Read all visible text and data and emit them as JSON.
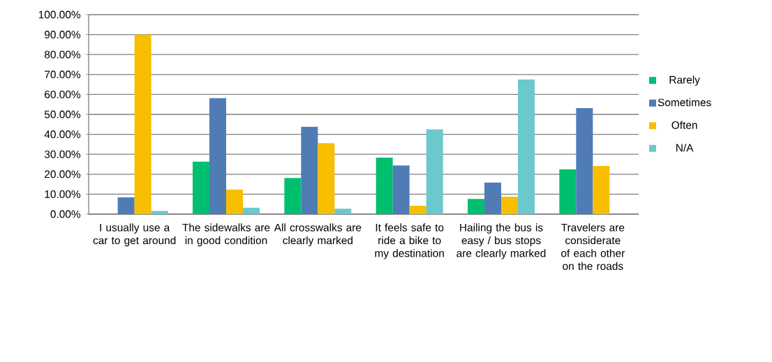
{
  "chart_data": {
    "type": "bar",
    "categories": [
      "I usually use a car to get around",
      "The sidewalks are in good condition",
      "All crosswalks are clearly marked",
      "It feels safe to ride a bike to my destination",
      "Hailing the bus is easy / bus stops are clearly marked",
      "Travelers are considerate of each other on the roads"
    ],
    "series": [
      {
        "name": "Rarely",
        "color": "#00bf6f",
        "values": [
          0,
          26.3,
          18.1,
          28.3,
          7.6,
          22.5
        ]
      },
      {
        "name": "Sometimes",
        "color": "#507cb6",
        "values": [
          8.4,
          58.1,
          43.8,
          24.4,
          15.8,
          53.1
        ]
      },
      {
        "name": "Often",
        "color": "#f8be00",
        "values": [
          90.0,
          12.3,
          35.6,
          4.2,
          8.7,
          24.1
        ]
      },
      {
        "name": "N/A",
        "color": "#6bc8cd",
        "values": [
          1.6,
          3.2,
          2.7,
          42.5,
          67.5,
          0
        ]
      }
    ],
    "ylim": [
      0,
      100
    ],
    "yticks": [
      {
        "value": 0,
        "label": "0.00%"
      },
      {
        "value": 10,
        "label": "10.00%"
      },
      {
        "value": 20,
        "label": "20.00%"
      },
      {
        "value": 30,
        "label": "30.00%"
      },
      {
        "value": 40,
        "label": "40.00%"
      },
      {
        "value": 50,
        "label": "50.00%"
      },
      {
        "value": 60,
        "label": "60.00%"
      },
      {
        "value": 70,
        "label": "70.00%"
      },
      {
        "value": 80,
        "label": "80.00%"
      },
      {
        "value": 90,
        "label": "90.00%"
      },
      {
        "value": 100,
        "label": "100.00%"
      }
    ],
    "grid": "y",
    "legend": "right"
  }
}
